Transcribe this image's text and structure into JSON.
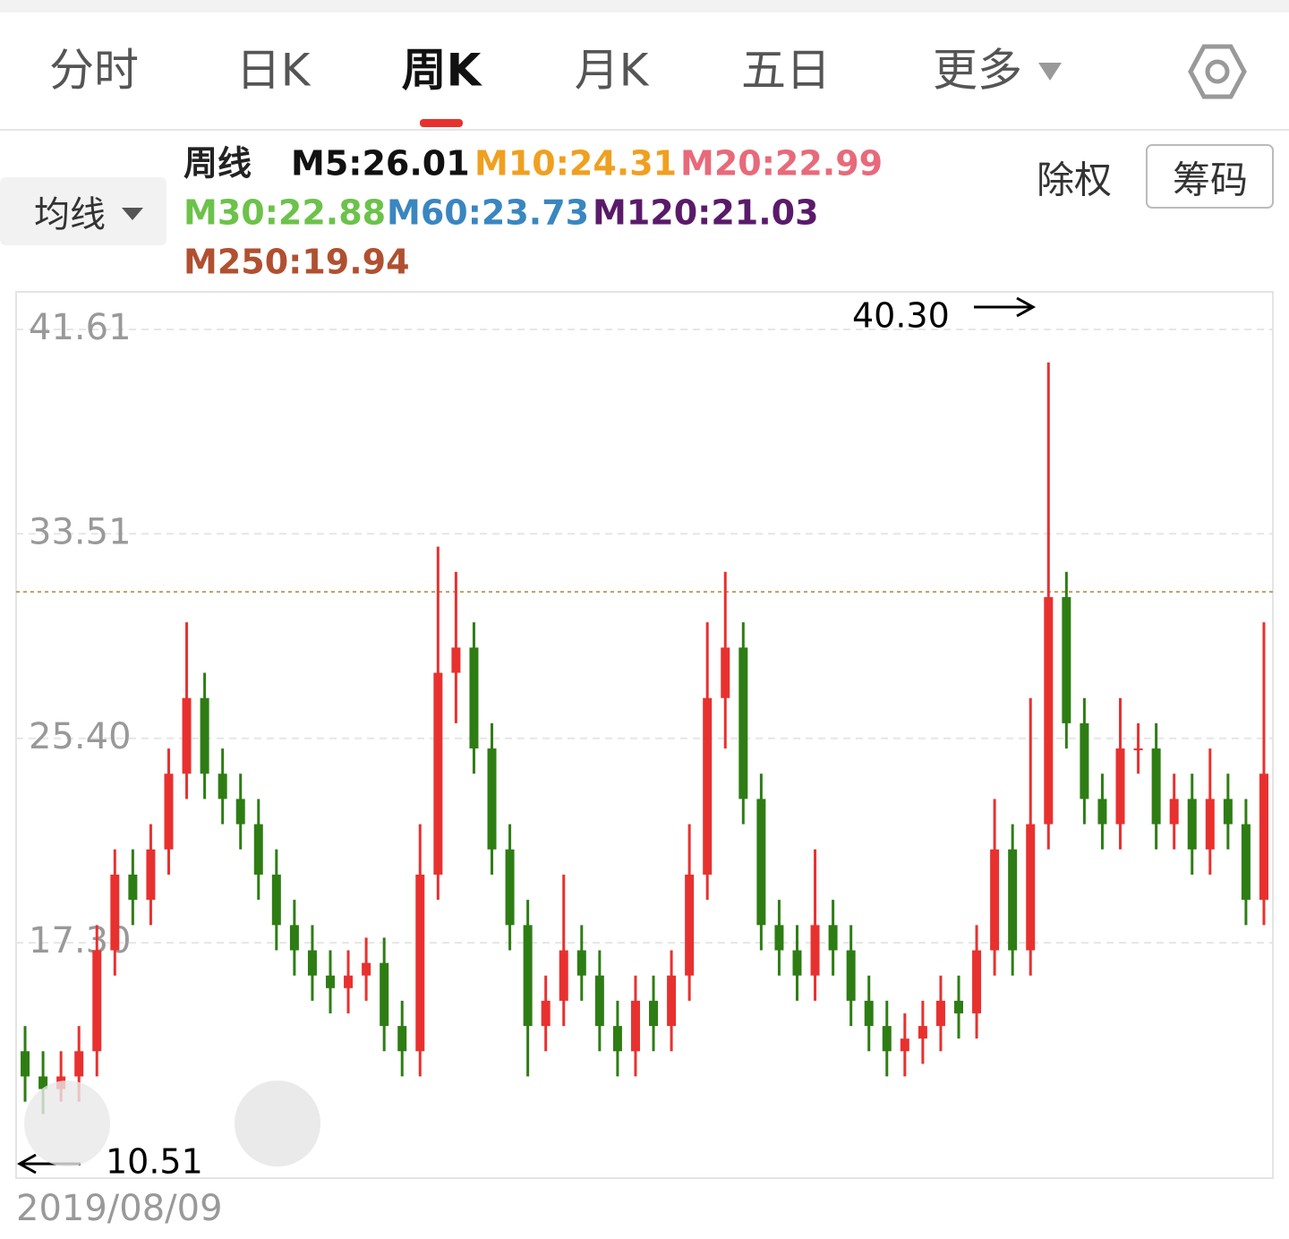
{
  "tabs": [
    "分时",
    "日K",
    "周K",
    "月K",
    "五日",
    "更多"
  ],
  "active_tab": 2,
  "indicator_button": "均线",
  "buttons": [
    "除权",
    "筹码"
  ],
  "chart_data": {
    "type": "candlestick",
    "legend": [
      {
        "text": "周线",
        "color": "#222222"
      },
      {
        "text": "M5:26.01",
        "color": "#111111"
      },
      {
        "text": "M10:24.31",
        "color": "#f0a020"
      },
      {
        "text": "M20:22.99",
        "color": "#e86a7a"
      },
      {
        "text": "M30:22.88",
        "color": "#6cc24a"
      },
      {
        "text": "M60:23.73",
        "color": "#3a86c0"
      },
      {
        "text": "M120:21.03",
        "color": "#5a1a6a"
      },
      {
        "text": "M250:19.94",
        "color": "#b05030"
      }
    ],
    "ylim": [
      7.97,
      43.1
    ],
    "yticks": [
      41.61,
      33.51,
      {
        "value": 25.4,
        "label": "25.40"
      },
      {
        "value": 17.3,
        "label": "17.30"
      }
    ],
    "grid": true,
    "reference_line": 31.21,
    "up_color": "#e8312f",
    "down_color": "#2e7d14",
    "open": [
      13,
      12,
      11.5,
      12,
      13,
      17,
      20,
      19,
      21,
      24,
      27,
      24,
      23,
      22,
      20,
      18,
      17,
      16,
      15.5,
      16,
      16.5,
      14,
      13,
      20,
      28,
      29,
      25,
      21,
      18,
      14,
      15,
      17,
      16,
      14,
      13,
      15,
      14,
      16,
      20,
      27,
      29,
      23,
      18,
      17,
      16,
      18,
      17,
      15,
      14,
      13,
      13.5,
      14,
      15,
      14.5,
      17,
      21,
      17,
      22,
      31,
      26,
      23,
      22,
      25,
      25,
      22,
      23,
      21,
      23,
      22,
      19
    ],
    "high": [
      14,
      13,
      13,
      14,
      18,
      21,
      21,
      22,
      25,
      30,
      28,
      25,
      24,
      23,
      21,
      19,
      18,
      17,
      17,
      17.5,
      17.5,
      15,
      22,
      33,
      32,
      30,
      26,
      22,
      19,
      16,
      20,
      18,
      17,
      15,
      16,
      16,
      17,
      22,
      30,
      32,
      30,
      24,
      19,
      18,
      21,
      19,
      18,
      16,
      15,
      14.5,
      15,
      16,
      16,
      18,
      23,
      22,
      27,
      40.3,
      32,
      27,
      24,
      27,
      26,
      26,
      24,
      24,
      25,
      24,
      23,
      30
    ],
    "low": [
      11,
      10.51,
      11,
      11,
      12,
      16,
      18,
      18,
      20,
      23,
      23,
      22,
      21,
      19,
      17,
      16,
      15,
      14.5,
      14.5,
      15,
      13,
      12,
      12,
      19,
      26,
      24,
      20,
      17,
      12,
      13,
      14,
      15,
      13,
      12,
      12,
      13,
      13,
      15,
      19,
      25,
      22,
      17,
      16,
      15,
      15,
      16,
      14,
      13,
      12,
      12,
      12.5,
      13,
      13.5,
      13.5,
      16,
      16,
      16,
      21,
      25,
      22,
      21,
      21,
      24,
      21,
      21,
      20,
      20,
      21,
      18,
      18
    ],
    "close": [
      12,
      11.5,
      12,
      13,
      17,
      20,
      19,
      21,
      24,
      27,
      24,
      23,
      22,
      20,
      18,
      17,
      16,
      15.5,
      16,
      16.5,
      14,
      13,
      20,
      28,
      29,
      25,
      21,
      18,
      14,
      15,
      17,
      16,
      14,
      13,
      15,
      14,
      16,
      20,
      27,
      29,
      23,
      18,
      17,
      16,
      18,
      17,
      15,
      14,
      13,
      13.5,
      14,
      15,
      14.5,
      17,
      21,
      17,
      22,
      31,
      26,
      23,
      22,
      25,
      25,
      22,
      23,
      21,
      23,
      22,
      19,
      24
    ],
    "high_label": "40.30",
    "low_label": "10.51",
    "start_date": "2019/08/09"
  }
}
